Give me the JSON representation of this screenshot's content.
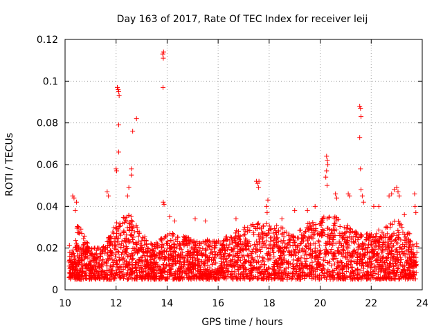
{
  "chart_data": {
    "type": "scatter",
    "title": "Day 163 of 2017, Rate Of TEC Index for receiver leij",
    "xlabel": "GPS time / hours",
    "ylabel": "ROTI / TECUs",
    "xlim": [
      10,
      24
    ],
    "ylim": [
      0,
      0.12
    ],
    "xticks": [
      10,
      12,
      14,
      16,
      18,
      20,
      22,
      24
    ],
    "yticks": [
      0,
      0.02,
      0.04,
      0.06,
      0.08,
      0.1,
      0.12
    ],
    "xtick_labels": [
      "10",
      "12",
      "14",
      "16",
      "18",
      "20",
      "22",
      "24"
    ],
    "ytick_labels": [
      "0",
      "0.02",
      "0.04",
      "0.06",
      "0.08",
      "0.1",
      "0.12"
    ],
    "grid": true,
    "marker": "+",
    "color": "#ff0000",
    "series": [
      {
        "name": "ROTI",
        "background_band": {
          "x_range": [
            10.15,
            23.8
          ],
          "typical_range": [
            0.005,
            0.035
          ],
          "description_values": [
            [
              10.2,
              0.012
            ],
            [
              10.5,
              0.03
            ],
            [
              11.0,
              0.018
            ],
            [
              11.5,
              0.02
            ],
            [
              12.0,
              0.03
            ],
            [
              12.5,
              0.035
            ],
            [
              13.0,
              0.025
            ],
            [
              13.5,
              0.02
            ],
            [
              14.0,
              0.025
            ],
            [
              14.5,
              0.025
            ],
            [
              15.0,
              0.022
            ],
            [
              15.5,
              0.022
            ],
            [
              16.0,
              0.022
            ],
            [
              16.5,
              0.025
            ],
            [
              17.0,
              0.028
            ],
            [
              17.5,
              0.03
            ],
            [
              18.0,
              0.03
            ],
            [
              18.5,
              0.028
            ],
            [
              19.0,
              0.025
            ],
            [
              19.5,
              0.03
            ],
            [
              20.0,
              0.032
            ],
            [
              20.5,
              0.035
            ],
            [
              21.0,
              0.03
            ],
            [
              21.5,
              0.025
            ],
            [
              22.0,
              0.025
            ],
            [
              22.5,
              0.028
            ],
            [
              23.0,
              0.032
            ],
            [
              23.5,
              0.025
            ],
            [
              23.8,
              0.02
            ]
          ]
        },
        "peaks": [
          [
            10.3,
            0.045
          ],
          [
            10.35,
            0.044
          ],
          [
            10.4,
            0.038
          ],
          [
            10.45,
            0.042
          ],
          [
            11.65,
            0.047
          ],
          [
            11.7,
            0.045
          ],
          [
            12.0,
            0.058
          ],
          [
            12.02,
            0.057
          ],
          [
            12.05,
            0.097
          ],
          [
            12.08,
            0.096
          ],
          [
            12.1,
            0.095
          ],
          [
            12.12,
            0.093
          ],
          [
            12.1,
            0.079
          ],
          [
            12.1,
            0.066
          ],
          [
            12.6,
            0.058
          ],
          [
            12.6,
            0.055
          ],
          [
            12.65,
            0.076
          ],
          [
            12.8,
            0.082
          ],
          [
            12.5,
            0.049
          ],
          [
            12.45,
            0.045
          ],
          [
            13.83,
            0.113
          ],
          [
            13.86,
            0.114
          ],
          [
            13.85,
            0.111
          ],
          [
            13.84,
            0.097
          ],
          [
            13.85,
            0.042
          ],
          [
            13.88,
            0.041
          ],
          [
            14.1,
            0.035
          ],
          [
            14.3,
            0.033
          ],
          [
            15.1,
            0.034
          ],
          [
            15.5,
            0.033
          ],
          [
            16.7,
            0.034
          ],
          [
            17.5,
            0.052
          ],
          [
            17.55,
            0.051
          ],
          [
            17.6,
            0.052
          ],
          [
            17.58,
            0.049
          ],
          [
            17.9,
            0.04
          ],
          [
            17.95,
            0.043
          ],
          [
            17.92,
            0.037
          ],
          [
            18.5,
            0.034
          ],
          [
            19.0,
            0.038
          ],
          [
            19.5,
            0.038
          ],
          [
            19.8,
            0.04
          ],
          [
            20.25,
            0.064
          ],
          [
            20.28,
            0.062
          ],
          [
            20.3,
            0.06
          ],
          [
            20.25,
            0.057
          ],
          [
            20.27,
            0.05
          ],
          [
            20.22,
            0.054
          ],
          [
            20.6,
            0.046
          ],
          [
            20.65,
            0.044
          ],
          [
            21.1,
            0.046
          ],
          [
            21.15,
            0.045
          ],
          [
            21.55,
            0.088
          ],
          [
            21.58,
            0.087
          ],
          [
            21.6,
            0.083
          ],
          [
            21.55,
            0.073
          ],
          [
            21.58,
            0.058
          ],
          [
            21.6,
            0.048
          ],
          [
            21.65,
            0.045
          ],
          [
            21.7,
            0.042
          ],
          [
            22.1,
            0.04
          ],
          [
            22.3,
            0.04
          ],
          [
            22.7,
            0.045
          ],
          [
            22.8,
            0.046
          ],
          [
            22.9,
            0.048
          ],
          [
            23.0,
            0.049
          ],
          [
            23.05,
            0.047
          ],
          [
            23.1,
            0.045
          ],
          [
            23.3,
            0.036
          ],
          [
            23.7,
            0.046
          ],
          [
            23.72,
            0.04
          ],
          [
            23.75,
            0.037
          ]
        ]
      }
    ]
  }
}
